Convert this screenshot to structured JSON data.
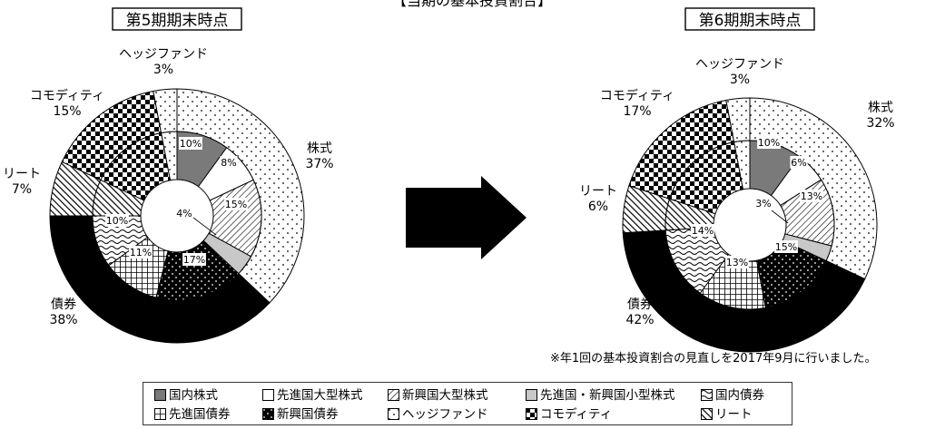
{
  "page_title": "【当期の基本投資割合】",
  "footnote": "※年1回の基本投資割合の見直しを2017年9月に行いました。",
  "colors": {
    "dark": "#000000",
    "gray": "#7a7a7a",
    "light_gray": "#c8c8c8",
    "border": "#333333",
    "arrow": "#000000"
  },
  "legend": [
    {
      "label": "国内株式",
      "pattern": "p-gray"
    },
    {
      "label": "先進国大型株式",
      "pattern": "p-white"
    },
    {
      "label": "新興国大型株式",
      "pattern": "p-diag"
    },
    {
      "label": "先進国・新興国小型株式",
      "pattern": "p-lgray"
    },
    {
      "label": "国内債券",
      "pattern": "p-wave"
    },
    {
      "label": "先進国債券",
      "pattern": "p-grid"
    },
    {
      "label": "新興国債券",
      "pattern": "p-blackdot"
    },
    {
      "label": "ヘッジファンド",
      "pattern": "p-dots"
    },
    {
      "label": "コモディティ",
      "pattern": "p-check"
    },
    {
      "label": "リート",
      "pattern": "p-hatch"
    }
  ],
  "chart_data": [
    {
      "type": "donut",
      "title": "第5期期末時点",
      "outer": [
        {
          "name": "株式",
          "value": 37,
          "label": "37%",
          "pattern": "p-dots"
        },
        {
          "name": "債券",
          "value": 38,
          "label": "38%",
          "pattern": "p-black"
        },
        {
          "name": "リート",
          "value": 7,
          "label": "7%",
          "pattern": "p-hatch"
        },
        {
          "name": "コモディティ",
          "value": 15,
          "label": "15%",
          "pattern": "p-check"
        },
        {
          "name": "ヘッジファンド",
          "value": 3,
          "label": "3%",
          "pattern": "p-dots"
        }
      ],
      "inner": [
        {
          "name": "国内株式",
          "value": 10,
          "label": "10%",
          "pattern": "p-gray"
        },
        {
          "name": "先進国大型株式",
          "value": 8,
          "label": "8%",
          "pattern": "p-white"
        },
        {
          "name": "新興国大型株式",
          "value": 15,
          "label": "15%",
          "pattern": "p-diag"
        },
        {
          "name": "先進国・新興国小型株式",
          "value": 4,
          "label": "4%",
          "pattern": "p-lgray"
        },
        {
          "name": "新興国債券",
          "value": 17,
          "label": "17%",
          "pattern": "p-blackdot"
        },
        {
          "name": "先進国債券",
          "value": 11,
          "label": "11%",
          "pattern": "p-grid"
        },
        {
          "name": "国内債券",
          "value": 10,
          "label": "10%",
          "pattern": "p-wave"
        },
        {
          "name": "リート",
          "value": 7,
          "label": "",
          "pattern": "p-hatch"
        },
        {
          "name": "コモディティ",
          "value": 15,
          "label": "",
          "pattern": "p-check"
        },
        {
          "name": "ヘッジファンド",
          "value": 3,
          "label": "",
          "pattern": "p-dots"
        }
      ]
    },
    {
      "type": "donut",
      "title": "第6期期末時点",
      "outer": [
        {
          "name": "株式",
          "value": 32,
          "label": "32%",
          "pattern": "p-dots"
        },
        {
          "name": "債券",
          "value": 42,
          "label": "42%",
          "pattern": "p-black"
        },
        {
          "name": "リート",
          "value": 6,
          "label": "6%",
          "pattern": "p-hatch"
        },
        {
          "name": "コモディティ",
          "value": 17,
          "label": "17%",
          "pattern": "p-check"
        },
        {
          "name": "ヘッジファンド",
          "value": 3,
          "label": "3%",
          "pattern": "p-dots"
        }
      ],
      "inner": [
        {
          "name": "国内株式",
          "value": 10,
          "label": "10%",
          "pattern": "p-gray"
        },
        {
          "name": "先進国大型株式",
          "value": 6,
          "label": "6%",
          "pattern": "p-white"
        },
        {
          "name": "新興国大型株式",
          "value": 13,
          "label": "13%",
          "pattern": "p-diag"
        },
        {
          "name": "先進国・新興国小型株式",
          "value": 3,
          "label": "3%",
          "pattern": "p-lgray"
        },
        {
          "name": "新興国債券",
          "value": 15,
          "label": "15%",
          "pattern": "p-blackdot"
        },
        {
          "name": "先進国債券",
          "value": 13,
          "label": "13%",
          "pattern": "p-grid"
        },
        {
          "name": "国内債券",
          "value": 14,
          "label": "14%",
          "pattern": "p-wave"
        },
        {
          "name": "リート",
          "value": 6,
          "label": "",
          "pattern": "p-hatch"
        },
        {
          "name": "コモディティ",
          "value": 17,
          "label": "",
          "pattern": "p-check"
        },
        {
          "name": "ヘッジファンド",
          "value": 3,
          "label": "",
          "pattern": "p-dots"
        }
      ]
    }
  ]
}
